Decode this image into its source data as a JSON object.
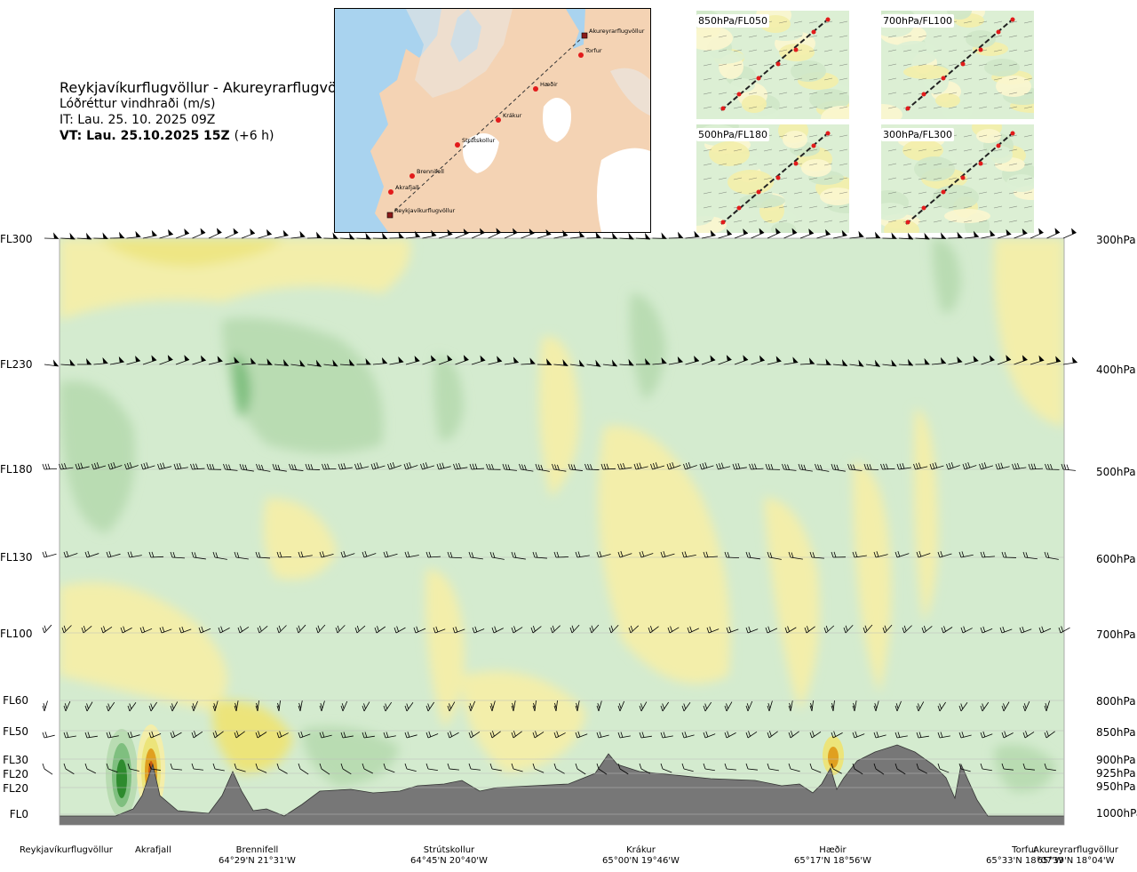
{
  "header": {
    "title": "Reykjavíkurflugvöllur - Akureyrarflugvöllur",
    "subtitle": "Lóðréttur vindhraði (m/s)",
    "issue_time": "IT: Lau. 25. 10. 2025 09Z",
    "valid_time": "VT: Lau. 25.10.2025 15Z",
    "valid_offset": "(+6 h)"
  },
  "map": {
    "stations": [
      {
        "name": "Akureyrarflugvöllur"
      },
      {
        "name": "Torfur"
      },
      {
        "name": "Hæðir"
      },
      {
        "name": "Krákur"
      },
      {
        "name": "Strútskollur"
      },
      {
        "name": "Brennifell"
      },
      {
        "name": "Akrafjall"
      },
      {
        "name": "Reykjavíkurflugvöllur"
      }
    ]
  },
  "mini_maps": [
    {
      "label": "850hPa/FL050"
    },
    {
      "label": "700hPa/FL100"
    },
    {
      "label": "500hPa/FL180"
    },
    {
      "label": "300hPa/FL300"
    }
  ],
  "left_levels": [
    {
      "label": "FL300"
    },
    {
      "label": "FL230"
    },
    {
      "label": "FL180"
    },
    {
      "label": "FL130"
    },
    {
      "label": "FL100"
    },
    {
      "label": "FL60"
    },
    {
      "label": "FL50"
    },
    {
      "label": "FL30"
    },
    {
      "label": "FL20"
    },
    {
      "label": "FL20"
    },
    {
      "label": "FL0"
    }
  ],
  "right_levels": [
    {
      "label": "300hPa"
    },
    {
      "label": "400hPa"
    },
    {
      "label": "500hPa"
    },
    {
      "label": "600hPa"
    },
    {
      "label": "700hPa"
    },
    {
      "label": "800hPa"
    },
    {
      "label": "850hPa"
    },
    {
      "label": "900hPa"
    },
    {
      "label": "925hPa"
    },
    {
      "label": "950hPa"
    },
    {
      "label": "1000hPa"
    }
  ],
  "locations": [
    {
      "name": "Reykjavíkurflugvöllur",
      "coord": ""
    },
    {
      "name": "Akrafjall",
      "coord": ""
    },
    {
      "name": "Brennifell",
      "coord": "64°29'N 21°31'W"
    },
    {
      "name": "Strútskollur",
      "coord": "64°45'N 20°40'W"
    },
    {
      "name": "Krákur",
      "coord": "65°00'N 19°46'W"
    },
    {
      "name": "Hæðir",
      "coord": "65°17'N 18°56'W"
    },
    {
      "name": "Torfur",
      "coord": "65°33'N 18°07'W"
    },
    {
      "name": "Akureyrarflugvöllur",
      "coord": "65°39'N 18°04'W"
    }
  ],
  "colors": {
    "terrain": "#777777",
    "strong_down": "#2e8b2e",
    "down": "#7fbf7f",
    "weak_down": "#b9dcb2",
    "faint_down": "#d4ebcf",
    "neutral": "#f4f8ec",
    "weak_up": "#f3eeaa",
    "up": "#ece47a",
    "strong_up": "#e0a020",
    "very_strong_up": "#c85a10"
  },
  "chart_data": {
    "type": "heatmap",
    "title": "Reykjavíkurflugvöllur - Akureyrarflugvöllur",
    "subtitle": "Lóðréttur vindhraði (m/s)",
    "x_axis": "route cross-section",
    "y_axis_left": [
      "FL300",
      "FL230",
      "FL180",
      "FL130",
      "FL100",
      "FL60",
      "FL50",
      "FL30",
      "FL20",
      "FL20",
      "FL0"
    ],
    "y_axis_right": [
      "300hPa",
      "400hPa",
      "500hPa",
      "600hPa",
      "700hPa",
      "800hPa",
      "850hPa",
      "900hPa",
      "925hPa",
      "950hPa",
      "1000hPa"
    ],
    "pressure_levels_hPa": [
      300,
      400,
      500,
      600,
      700,
      800,
      850,
      900,
      925,
      950,
      1000
    ],
    "route_points": [
      "Reykjavíkurflugvöllur",
      "Akrafjall",
      "Brennifell",
      "Strútskollur",
      "Krákur",
      "Hæðir",
      "Torfur",
      "Akureyrarflugvöllur"
    ],
    "features": [
      {
        "kind": "downdraft",
        "near": "Akrafjall",
        "strength": "strong"
      },
      {
        "kind": "updraft",
        "near": "Akrafjall",
        "strength": "very strong"
      },
      {
        "kind": "updraft",
        "near": "Hæðir",
        "strength": "moderate"
      },
      {
        "kind": "downdraft",
        "near": "Strútskollur",
        "strength": "moderate"
      }
    ],
    "terrain_profile": "grey filled orography, highest between Hæðir and Torfur"
  }
}
